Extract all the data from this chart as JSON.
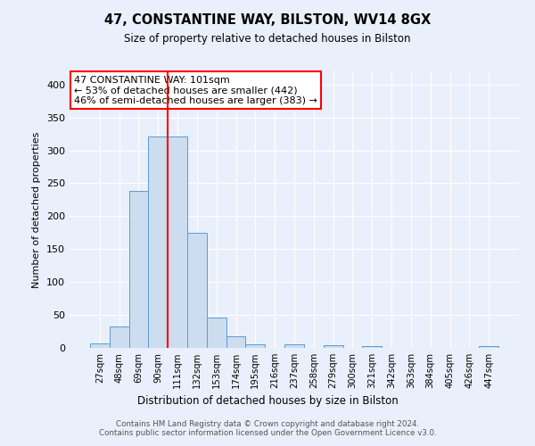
{
  "title1": "47, CONSTANTINE WAY, BILSTON, WV14 8GX",
  "title2": "Size of property relative to detached houses in Bilston",
  "xlabel": "Distribution of detached houses by size in Bilston",
  "ylabel": "Number of detached properties",
  "bin_labels": [
    "27sqm",
    "48sqm",
    "69sqm",
    "90sqm",
    "111sqm",
    "132sqm",
    "153sqm",
    "174sqm",
    "195sqm",
    "216sqm",
    "237sqm",
    "258sqm",
    "279sqm",
    "300sqm",
    "321sqm",
    "342sqm",
    "363sqm",
    "384sqm",
    "405sqm",
    "426sqm",
    "447sqm"
  ],
  "bar_heights": [
    7,
    32,
    238,
    321,
    321,
    175,
    46,
    17,
    5,
    0,
    5,
    0,
    4,
    0,
    3,
    0,
    0,
    0,
    0,
    0,
    3
  ],
  "bar_color": "#ccddf0",
  "bar_edge_color": "#5b9bd5",
  "background_color": "#eaf0fb",
  "grid_color": "#ffffff",
  "red_line_x": 3.5,
  "annotation_text": "47 CONSTANTINE WAY: 101sqm\n← 53% of detached houses are smaller (442)\n46% of semi-detached houses are larger (383) →",
  "annotation_box_color": "white",
  "annotation_box_edge_color": "red",
  "footer_text": "Contains HM Land Registry data © Crown copyright and database right 2024.\nContains public sector information licensed under the Open Government Licence v3.0.",
  "ylim": [
    0,
    420
  ],
  "yticks": [
    0,
    50,
    100,
    150,
    200,
    250,
    300,
    350,
    400
  ]
}
